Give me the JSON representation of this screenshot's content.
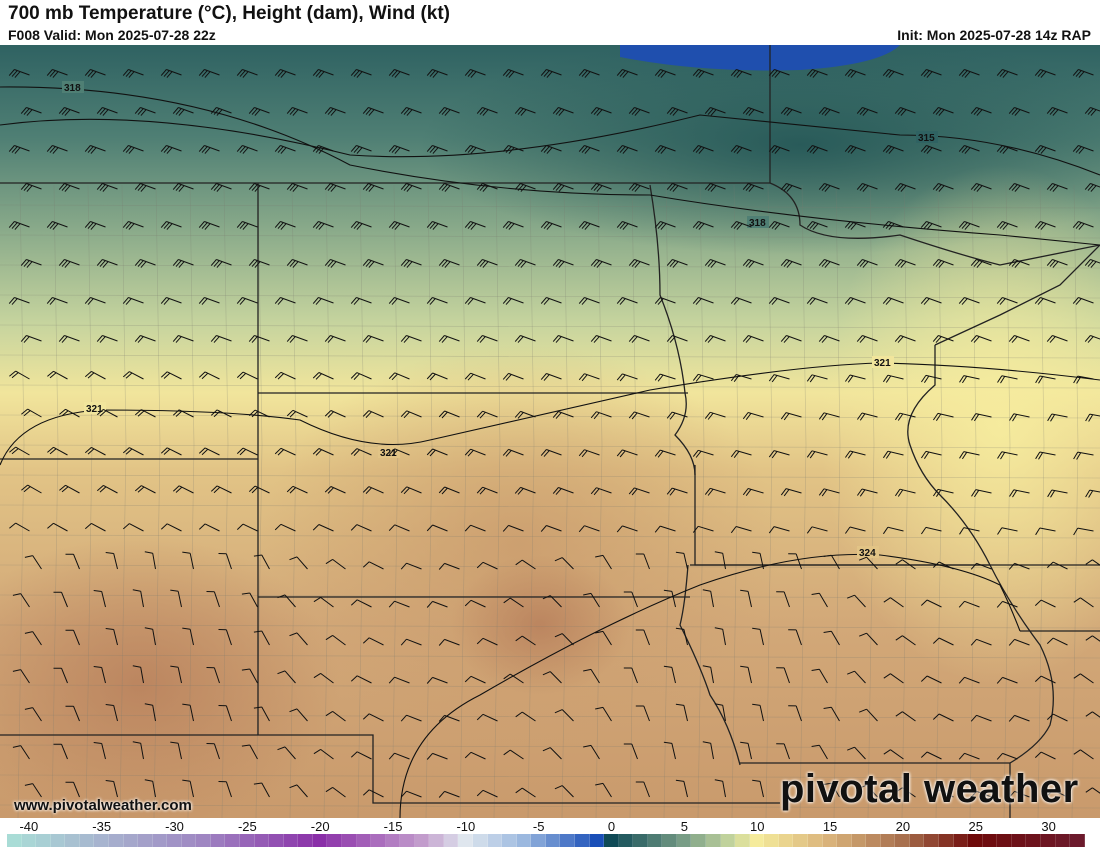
{
  "header": {
    "title": "700 mb Temperature (°C), Height (dam), Wind (kt)",
    "valid": "F008 Valid: Mon 2025-07-28 22z",
    "init": "Init: Mon 2025-07-28 14z RAP"
  },
  "contour_labels": [
    "318",
    "315",
    "318",
    "321",
    "321",
    "321",
    "324"
  ],
  "watermark": {
    "url": "www.pivotalweather.com",
    "brand": "pivotal weather"
  },
  "colorbar": {
    "ticks": [
      "-40",
      "-35",
      "-30",
      "-25",
      "-20",
      "-15",
      "-10",
      "-5",
      "0",
      "5",
      "10",
      "15",
      "20",
      "25",
      "30"
    ],
    "min": -41,
    "max": 32,
    "stops": [
      {
        "v": -41,
        "c": "#a9dcd6"
      },
      {
        "v": -35,
        "c": "#a7b4cf"
      },
      {
        "v": -28,
        "c": "#9f86c2"
      },
      {
        "v": -20,
        "c": "#8a2fa8"
      },
      {
        "v": -13,
        "c": "#c29ccc"
      },
      {
        "v": -10,
        "c": "#dfe6ee"
      },
      {
        "v": -6,
        "c": "#9bb8df"
      },
      {
        "v": -1,
        "c": "#1a4fb8"
      },
      {
        "v": 0,
        "c": "#0f4a56"
      },
      {
        "v": 5,
        "c": "#789d86"
      },
      {
        "v": 8,
        "c": "#c0d29c"
      },
      {
        "v": 10,
        "c": "#f5eb9c"
      },
      {
        "v": 15,
        "c": "#d9b27a"
      },
      {
        "v": 20,
        "c": "#a8704e"
      },
      {
        "v": 25,
        "c": "#6e0a0a"
      },
      {
        "v": 32,
        "c": "#6c1a2c"
      }
    ]
  }
}
